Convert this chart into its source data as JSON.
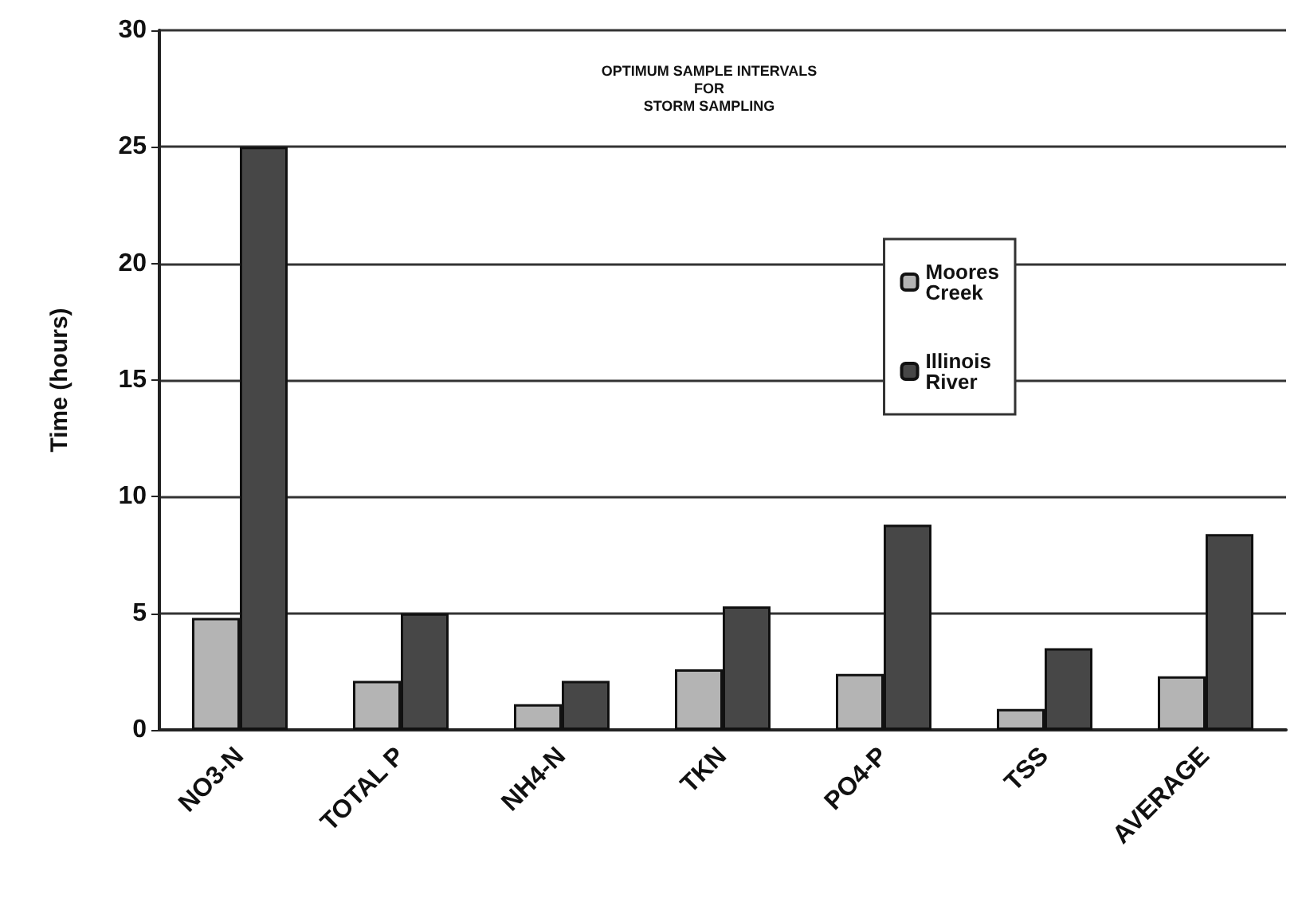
{
  "chart_data": {
    "type": "bar",
    "title": "OPTIMUM SAMPLE INTERVALS\nFOR\nSTORM SAMPLING",
    "ylabel": "Time (hours)",
    "categories": [
      "NO3-N",
      "TOTAL P",
      "NH4-N",
      "TKN",
      "PO4-P",
      "TSS",
      "AVERAGE"
    ],
    "series": [
      {
        "name": "Moores\nCreek",
        "color": "#b4b4b4",
        "values": [
          4.8,
          2.1,
          1.1,
          2.6,
          2.4,
          0.9,
          2.3
        ]
      },
      {
        "name": "Illinois\nRiver",
        "color": "#474747",
        "values": [
          25.0,
          5.0,
          2.1,
          5.3,
          8.8,
          3.5,
          8.4
        ]
      }
    ],
    "ylim": [
      0,
      30
    ],
    "yticks": [
      0,
      5,
      10,
      15,
      20,
      25,
      30
    ],
    "grid": "y",
    "legend": "right"
  }
}
